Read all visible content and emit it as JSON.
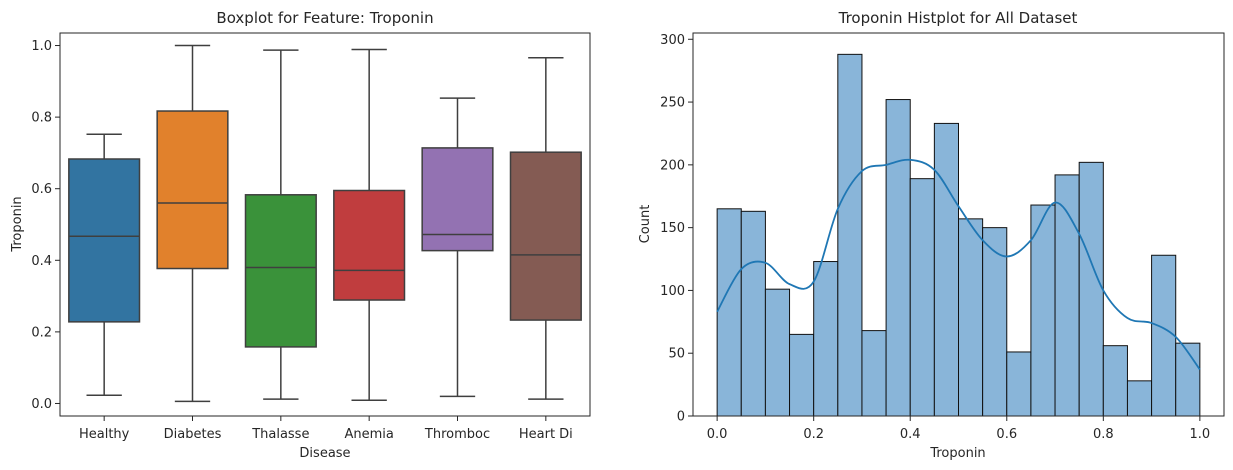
{
  "chart_data": [
    {
      "type": "boxplot",
      "title": "Boxplot for Feature: Troponin",
      "xlabel": "Disease",
      "ylabel": "Troponin",
      "ylim": [
        -0.035,
        1.035
      ],
      "yticks": [
        0.0,
        0.2,
        0.4,
        0.6,
        0.8,
        1.0
      ],
      "ytick_labels": [
        "0.0",
        "0.2",
        "0.4",
        "0.6",
        "0.8",
        "1.0"
      ],
      "categories": [
        "Healthy",
        "Diabetes",
        "Thalasse",
        "Anemia",
        "Thromboc",
        "Heart Di"
      ],
      "boxes": [
        {
          "category": "Healthy",
          "whislo": 0.023,
          "q1": 0.228,
          "med": 0.467,
          "q3": 0.683,
          "whishi": 0.752,
          "color": "#3274a1"
        },
        {
          "category": "Diabetes",
          "whislo": 0.006,
          "q1": 0.377,
          "med": 0.56,
          "q3": 0.817,
          "whishi": 1.0,
          "color": "#e1812c"
        },
        {
          "category": "Thalasse",
          "whislo": 0.012,
          "q1": 0.158,
          "med": 0.38,
          "q3": 0.583,
          "whishi": 0.987,
          "color": "#3a923a"
        },
        {
          "category": "Anemia",
          "whislo": 0.009,
          "q1": 0.289,
          "med": 0.372,
          "q3": 0.595,
          "whishi": 0.989,
          "color": "#c03d3e"
        },
        {
          "category": "Thromboc",
          "whislo": 0.02,
          "q1": 0.427,
          "med": 0.472,
          "q3": 0.714,
          "whishi": 0.853,
          "color": "#9372b2"
        },
        {
          "category": "Heart Di",
          "whislo": 0.012,
          "q1": 0.233,
          "med": 0.415,
          "q3": 0.702,
          "whishi": 0.966,
          "color": "#845b53"
        }
      ]
    },
    {
      "type": "histogram",
      "title": "Troponin Histplot for All Dataset",
      "xlabel": "Troponin",
      "ylabel": "Count",
      "xlim": [
        -0.05,
        1.05
      ],
      "ylim": [
        0,
        305
      ],
      "xticks": [
        0.0,
        0.2,
        0.4,
        0.6,
        0.8,
        1.0
      ],
      "xtick_labels": [
        "0.0",
        "0.2",
        "0.4",
        "0.6",
        "0.8",
        "1.0"
      ],
      "yticks": [
        0,
        50,
        100,
        150,
        200,
        250,
        300
      ],
      "ytick_labels": [
        "0",
        "50",
        "100",
        "150",
        "200",
        "250",
        "300"
      ],
      "bin_edges": [
        0.0,
        0.05,
        0.1,
        0.15,
        0.2,
        0.25,
        0.3,
        0.35,
        0.4,
        0.45,
        0.5,
        0.55,
        0.6,
        0.65,
        0.7,
        0.75,
        0.8,
        0.85,
        0.9,
        0.95,
        1.0
      ],
      "counts": [
        165,
        163,
        101,
        65,
        123,
        288,
        68,
        252,
        189,
        233,
        157,
        150,
        51,
        168,
        192,
        202,
        56,
        28,
        128,
        58
      ],
      "bar_color": "#89b5d9",
      "kde_color": "#1f77b4",
      "kde": {
        "x": [
          0.0,
          0.05,
          0.1,
          0.15,
          0.2,
          0.25,
          0.3,
          0.35,
          0.4,
          0.45,
          0.5,
          0.55,
          0.6,
          0.65,
          0.7,
          0.75,
          0.8,
          0.85,
          0.9,
          0.95,
          1.0
        ],
        "y": [
          83,
          117,
          122,
          105,
          107,
          165,
          195,
          200,
          204,
          196,
          167,
          140,
          127,
          140,
          170,
          145,
          100,
          78,
          74,
          63,
          37
        ]
      }
    }
  ]
}
